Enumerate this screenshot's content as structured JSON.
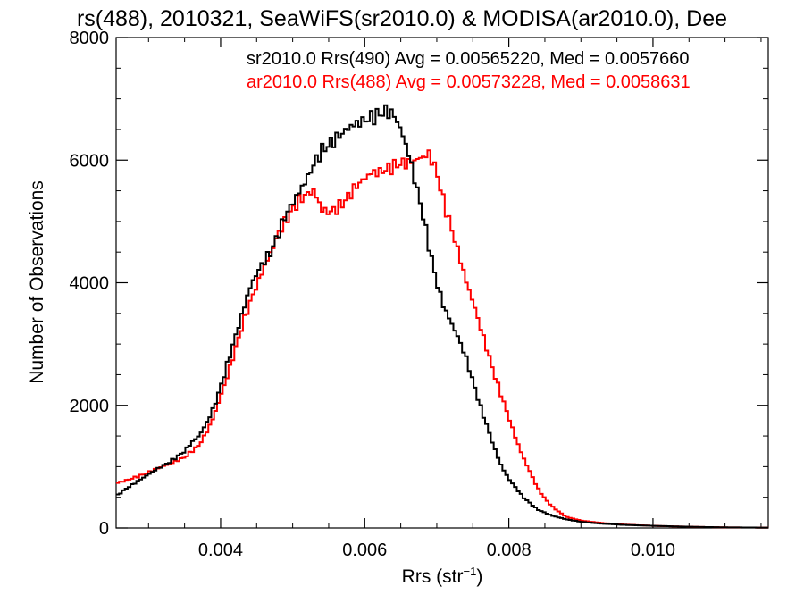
{
  "chart_data": {
    "type": "line",
    "title": "rs(488), 2010321, SeaWiFS(sr2010.0) & MODISA(ar2010.0), Dee",
    "xlabel": "Rrs (str",
    "xlabel_sup": "−1",
    "xlabel_close": ")",
    "ylabel": "Number of Observations",
    "xlim": [
      0.00255,
      0.0116
    ],
    "ylim": [
      0,
      8000
    ],
    "x_ticks": [
      0.004,
      0.006,
      0.008,
      0.01
    ],
    "x_tick_labels": [
      "0.004",
      "0.006",
      "0.008",
      "0.010"
    ],
    "y_ticks": [
      0,
      2000,
      4000,
      6000,
      8000
    ],
    "y_tick_labels": [
      "0",
      "2000",
      "4000",
      "6000",
      "8000"
    ],
    "grid": false,
    "legend_placement": "top-right",
    "series": [
      {
        "name": "sr2010.0 Rrs(490) Avg = 0.00565220, Med = 0.0057660",
        "color": "#000000",
        "x": [
          0.00255,
          0.0027,
          0.0029,
          0.0031,
          0.0033,
          0.0035,
          0.0036,
          0.0037,
          0.0038,
          0.0039,
          0.004,
          0.0041,
          0.0042,
          0.0043,
          0.0044,
          0.0045,
          0.0046,
          0.0047,
          0.0048,
          0.0049,
          0.005,
          0.0051,
          0.0052,
          0.0053,
          0.0054,
          0.0055,
          0.0056,
          0.0057,
          0.0058,
          0.0059,
          0.006,
          0.0061,
          0.0062,
          0.0063,
          0.0064,
          0.0065,
          0.0066,
          0.0067,
          0.0068,
          0.0069,
          0.007,
          0.0071,
          0.0072,
          0.0073,
          0.0074,
          0.0075,
          0.0076,
          0.0077,
          0.0078,
          0.0079,
          0.008,
          0.0081,
          0.0082,
          0.0083,
          0.0084,
          0.0086,
          0.0088,
          0.009,
          0.0093,
          0.0096,
          0.01,
          0.0105,
          0.011,
          0.0116
        ],
        "y": [
          520,
          650,
          800,
          950,
          1080,
          1250,
          1400,
          1500,
          1700,
          1950,
          2300,
          2700,
          3100,
          3500,
          3900,
          4150,
          4350,
          4500,
          4800,
          5100,
          5300,
          5500,
          5700,
          5950,
          6150,
          6250,
          6350,
          6450,
          6550,
          6600,
          6650,
          6700,
          6750,
          6800,
          6750,
          6500,
          6150,
          5650,
          5150,
          4550,
          4000,
          3600,
          3350,
          3100,
          2800,
          2400,
          2000,
          1650,
          1300,
          1000,
          800,
          650,
          500,
          400,
          300,
          200,
          140,
          100,
          70,
          50,
          35,
          20,
          10,
          5
        ]
      },
      {
        "name": "ar2010.0 Rrs(488) Avg = 0.00573228, Med = 0.0058631",
        "color": "#ff0000",
        "x": [
          0.00255,
          0.0027,
          0.0029,
          0.0031,
          0.0033,
          0.0035,
          0.0036,
          0.0037,
          0.0038,
          0.0039,
          0.004,
          0.0041,
          0.0042,
          0.0043,
          0.0044,
          0.0045,
          0.0046,
          0.0047,
          0.0048,
          0.0049,
          0.005,
          0.0051,
          0.0052,
          0.0053,
          0.0054,
          0.0055,
          0.0056,
          0.0057,
          0.0058,
          0.0059,
          0.006,
          0.0061,
          0.0062,
          0.0063,
          0.0064,
          0.0065,
          0.0066,
          0.0067,
          0.0068,
          0.0069,
          0.007,
          0.0071,
          0.0072,
          0.0073,
          0.0074,
          0.0075,
          0.0076,
          0.0077,
          0.0078,
          0.0079,
          0.008,
          0.0081,
          0.0082,
          0.0083,
          0.0084,
          0.0085,
          0.0086,
          0.0087,
          0.0088,
          0.009,
          0.0093,
          0.0096,
          0.01,
          0.0105,
          0.011,
          0.0116
        ],
        "y": [
          730,
          780,
          860,
          960,
          1050,
          1150,
          1250,
          1350,
          1550,
          1800,
          2150,
          2500,
          2900,
          3300,
          3650,
          3950,
          4250,
          4500,
          4800,
          5000,
          5200,
          5350,
          5450,
          5500,
          5200,
          5150,
          5200,
          5300,
          5450,
          5600,
          5700,
          5800,
          5800,
          5850,
          5900,
          5950,
          5950,
          6000,
          6050,
          6100,
          5800,
          5300,
          4900,
          4500,
          4050,
          3700,
          3300,
          2900,
          2500,
          2150,
          1800,
          1450,
          1150,
          900,
          650,
          480,
          350,
          260,
          180,
          120,
          80,
          55,
          35,
          20,
          10,
          5
        ]
      }
    ]
  }
}
